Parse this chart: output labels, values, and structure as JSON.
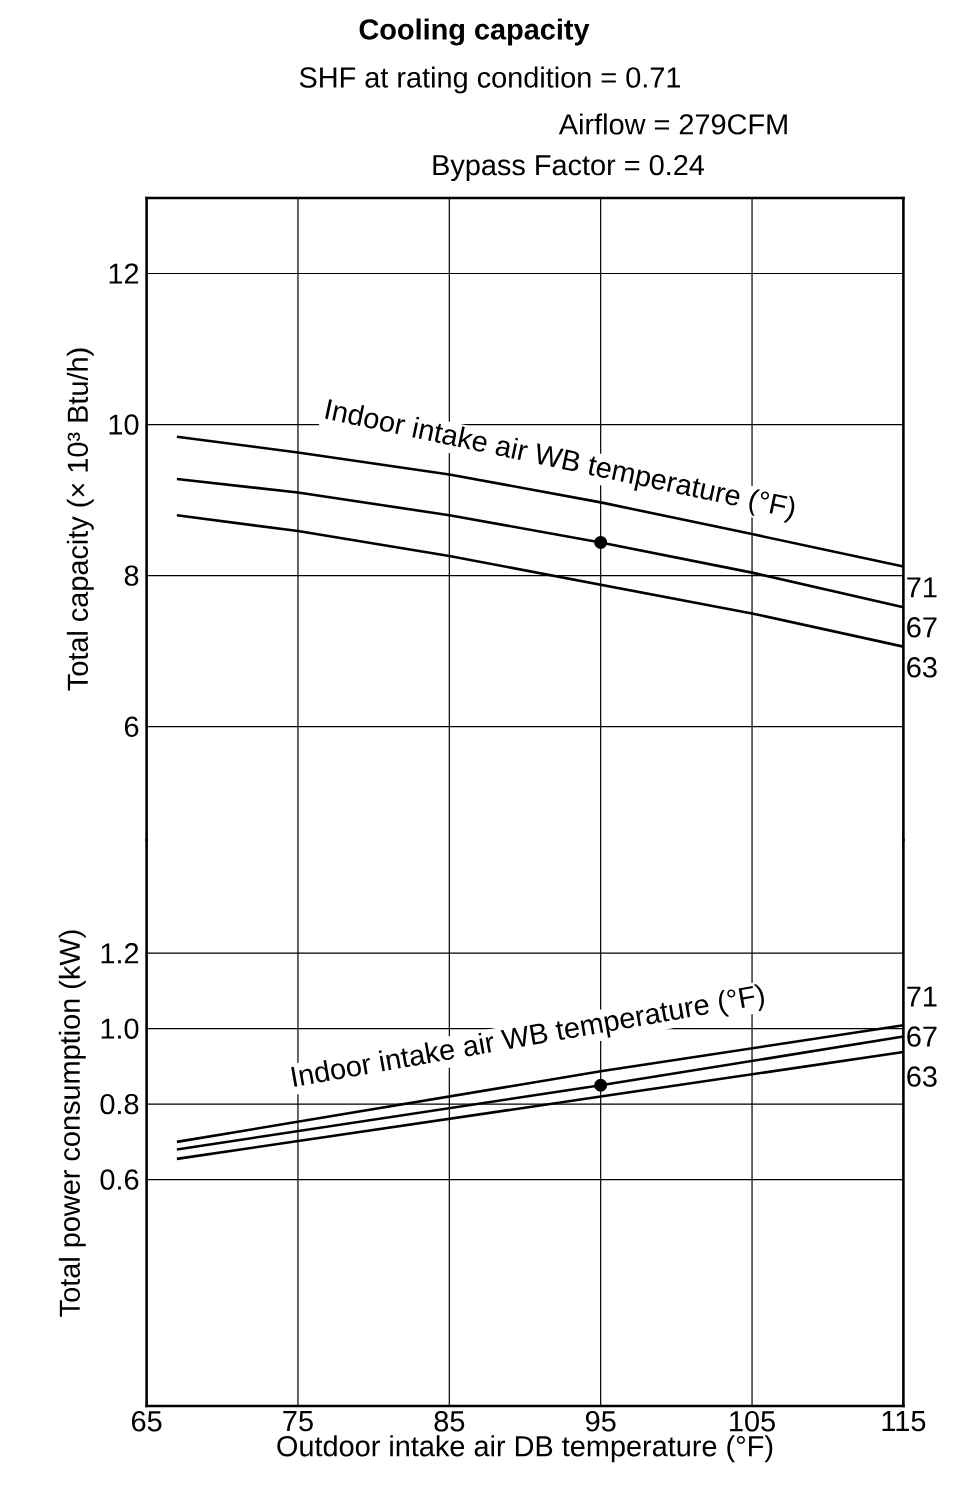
{
  "chart_data": [
    {
      "type": "line",
      "title": "Cooling capacity",
      "ylabel": "Total capacity (× 10³ Btu/h)",
      "annotations": [
        "SHF at rating condition = 0.71",
        "Airflow = 279CFM",
        "Bypass Factor = 0.24",
        "Indoor intake air WB temperature (°F)"
      ],
      "x": [
        67,
        75,
        85,
        95,
        105,
        115
      ],
      "series": [
        {
          "name": "71",
          "color": "#000000",
          "values": [
            9.84,
            9.63,
            9.34,
            8.97,
            8.55,
            8.12
          ]
        },
        {
          "name": "67",
          "color": "#000000",
          "values": [
            9.28,
            9.1,
            8.8,
            8.44,
            8.04,
            7.58
          ]
        },
        {
          "name": "63",
          "color": "#000000",
          "values": [
            8.8,
            8.59,
            8.26,
            7.88,
            7.5,
            7.06
          ]
        },
        {
          "type": "scatter",
          "color": "#000000",
          "x": [
            95
          ],
          "values": [
            8.44
          ]
        }
      ],
      "xlim": [
        65,
        115
      ],
      "xticks": [
        65,
        75,
        85,
        95,
        105,
        115
      ],
      "ylim": [
        4.5,
        13
      ],
      "yticks": [
        6,
        8,
        10,
        12
      ],
      "grid": true,
      "tick_labels": "y"
    },
    {
      "type": "line",
      "ylabel": "Total power consumption (kW)",
      "xlabel": "Outdoor intake air DB temperature (°F)",
      "annotations": [
        "Indoor intake air WB temperature (°F)"
      ],
      "x": [
        67,
        95,
        115
      ],
      "series": [
        {
          "name": "71",
          "color": "#000000",
          "values": [
            0.7,
            0.887,
            1.009
          ]
        },
        {
          "name": "67",
          "color": "#000000",
          "values": [
            0.68,
            0.85,
            0.979
          ]
        },
        {
          "name": "63",
          "color": "#000000",
          "values": [
            0.655,
            0.82,
            0.938
          ]
        },
        {
          "type": "scatter",
          "color": "#000000",
          "x": [
            95
          ],
          "values": [
            0.85
          ]
        }
      ],
      "xlim": [
        65,
        115
      ],
      "xticks": [
        65,
        75,
        85,
        95,
        105,
        115
      ],
      "ylim": [
        0,
        1.5
      ],
      "yticks": [
        0.6,
        0.8,
        {
          "value": 1.0,
          "label": "1.0"
        },
        1.2
      ],
      "grid": true
    }
  ]
}
